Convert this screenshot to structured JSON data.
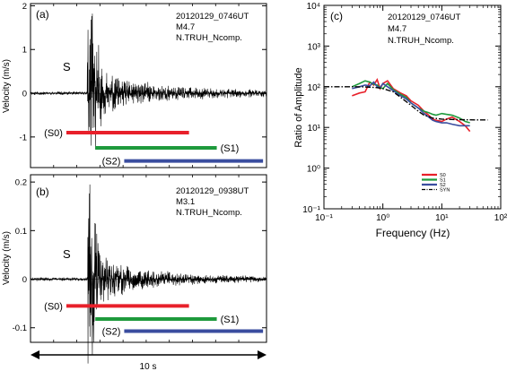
{
  "chart_data": [
    {
      "panel": "(a)",
      "type": "line",
      "title_lines": [
        "20120129_0746UT",
        "M4.7",
        "N.TRUH_Ncomp."
      ],
      "ylabel": "Velocity (m/s)",
      "ylim": [
        -1.7,
        2.05
      ],
      "yticks": [
        -1,
        0,
        1,
        2
      ],
      "ytick_labels": [
        "-1",
        "0",
        "1",
        "2"
      ],
      "xlim": [
        0,
        10.2
      ],
      "phase_label": "S",
      "phase_time": 2.45,
      "waveform": {
        "pre_noise": 0.04,
        "peak": 1.75,
        "peak_time": 2.6,
        "decay": 2.3,
        "post_noise": 0.07,
        "seed": 11
      },
      "windows": [
        {
          "label": "(S0)",
          "start": 1.55,
          "end": 6.85,
          "y": -0.9,
          "color": "#e8202a"
        },
        {
          "label": "(S1)",
          "start": 2.8,
          "end": 8.05,
          "y": -1.25,
          "color": "#1e9a3c"
        },
        {
          "label": "(S2)",
          "start": 4.05,
          "end": 10.05,
          "y": -1.55,
          "color": "#3a4d9f"
        }
      ]
    },
    {
      "panel": "(b)",
      "type": "line",
      "title_lines": [
        "20120129_0938UT",
        "M3.1",
        "N.TRUH_Ncomp."
      ],
      "ylabel": "Velocity (m/s)",
      "ylim": [
        -0.13,
        0.215
      ],
      "yticks": [
        -0.1,
        0,
        0.1,
        0.2
      ],
      "ytick_labels": [
        "-0.1",
        "0",
        "0.1",
        "0.2"
      ],
      "xlim": [
        0,
        10.2
      ],
      "phase_label": "S",
      "phase_time": 2.45,
      "waveform": {
        "pre_noise": 0.004,
        "peak": 0.19,
        "peak_time": 2.45,
        "decay": 1.9,
        "post_noise": 0.006,
        "seed": 29
      },
      "windows": [
        {
          "label": "(S0)",
          "start": 1.55,
          "end": 6.85,
          "y": -0.055,
          "color": "#e8202a"
        },
        {
          "label": "(S1)",
          "start": 2.8,
          "end": 8.05,
          "y": -0.082,
          "color": "#1e9a3c"
        },
        {
          "label": "(S2)",
          "start": 4.05,
          "end": 10.05,
          "y": -0.107,
          "color": "#3a4d9f"
        }
      ]
    },
    {
      "panel": "(c)",
      "type": "line",
      "title_lines": [
        "20120129_0746UT",
        "M4.7",
        "N.TRUH_Ncomp."
      ],
      "xscale": "log",
      "yscale": "log",
      "xlabel": "Frequency (Hz)",
      "ylabel": "Ratio of Amplitude",
      "xlim": [
        0.1,
        100
      ],
      "ylim": [
        0.1,
        10000
      ],
      "xtick_labels": [
        "10⁻¹",
        "10⁰",
        "10¹",
        "10²"
      ],
      "ytick_labels": [
        "10⁻¹",
        "10⁰",
        "10¹",
        "10²",
        "10³",
        "10⁴"
      ],
      "legend_position": "bottom-center",
      "series": [
        {
          "name": "S0",
          "color": "#e8202a",
          "dash": "",
          "x": [
            0.3,
            0.4,
            0.5,
            0.6,
            0.7,
            0.8,
            0.9,
            1.0,
            1.2,
            1.5,
            2.0,
            2.5,
            3.0,
            4.0,
            5.0,
            6.0,
            7.0,
            8.0,
            10,
            12,
            15,
            20,
            25,
            30
          ],
          "y": [
            60,
            70,
            75,
            130,
            110,
            150,
            90,
            120,
            140,
            90,
            70,
            60,
            45,
            35,
            25,
            20,
            16,
            15,
            14,
            16,
            18,
            14,
            11,
            8
          ]
        },
        {
          "name": "S1",
          "color": "#1e9a3c",
          "dash": "",
          "x": [
            0.3,
            0.4,
            0.5,
            0.6,
            0.7,
            0.8,
            0.9,
            1.0,
            1.2,
            1.5,
            2.0,
            2.5,
            3.0,
            4.0,
            5.0,
            6.0,
            7.0,
            8.0,
            10,
            12,
            15,
            20,
            25,
            30
          ],
          "y": [
            100,
            120,
            140,
            130,
            115,
            110,
            95,
            90,
            120,
            85,
            65,
            55,
            40,
            30,
            25,
            23,
            21,
            20,
            22,
            21,
            20,
            17,
            14,
            13
          ]
        },
        {
          "name": "S2",
          "color": "#3a4d9f",
          "dash": "",
          "x": [
            0.3,
            0.4,
            0.5,
            0.6,
            0.7,
            0.8,
            0.9,
            1.0,
            1.2,
            1.5,
            2.0,
            2.5,
            3.0,
            4.0,
            5.0,
            6.0,
            7.0,
            8.0,
            10,
            12,
            15,
            20,
            25,
            30
          ],
          "y": [
            90,
            100,
            110,
            105,
            130,
            100,
            95,
            120,
            100,
            80,
            60,
            50,
            40,
            30,
            22,
            18,
            15,
            14,
            13,
            13,
            12,
            11,
            11,
            11
          ]
        },
        {
          "name": "SYN",
          "color": "#000000",
          "dash": "6 2 1.5 2",
          "x": [
            0.1,
            0.3,
            0.5,
            0.8,
            1.0,
            1.5,
            2.0,
            3.0,
            4.0,
            5.0,
            7.0,
            10,
            20,
            40,
            60
          ],
          "y": [
            100,
            100,
            99,
            95,
            90,
            75,
            55,
            35,
            25,
            20,
            17,
            16,
            15.5,
            15.3,
            15.3
          ]
        }
      ]
    }
  ],
  "time_scale": {
    "label": "10 s"
  }
}
